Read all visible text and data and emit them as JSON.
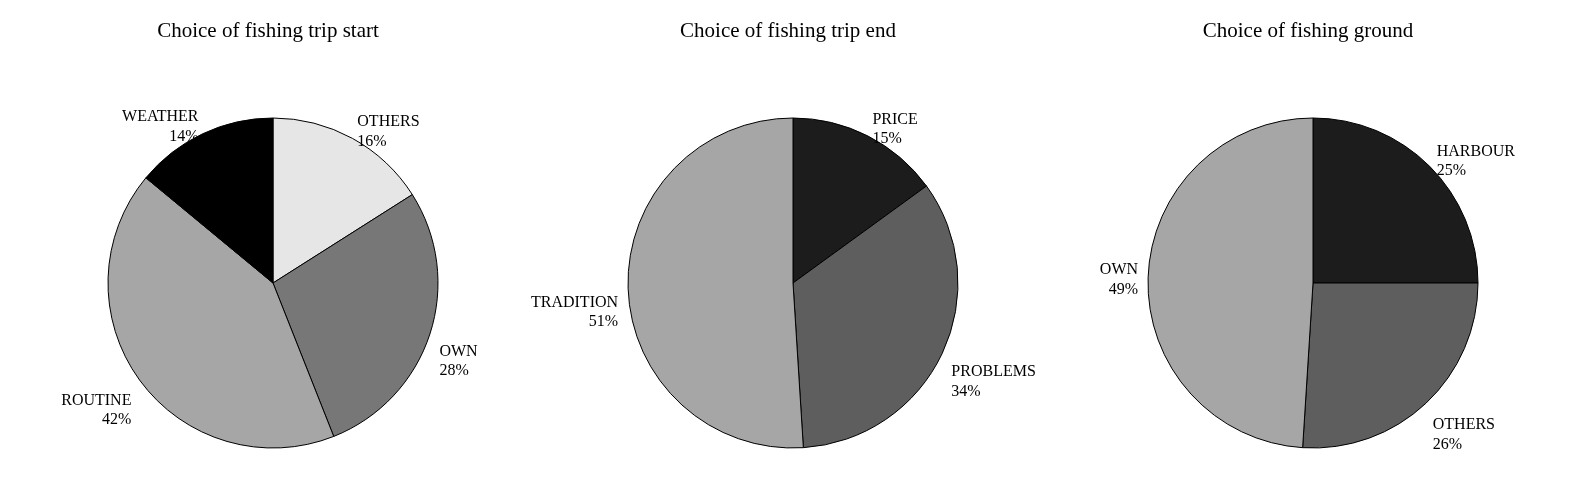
{
  "chart_data": [
    {
      "type": "pie",
      "title": "Choice of fishing trip start",
      "categories": [
        "OTHERS",
        "OWN",
        "ROUTINE",
        "WEATHER"
      ],
      "values": [
        16,
        28,
        42,
        14
      ],
      "value_labels": [
        "16%",
        "28%",
        "42%",
        "14%"
      ],
      "colors": [
        "#e6e6e6",
        "#777777",
        "#a6a6a6",
        "#000000"
      ]
    },
    {
      "type": "pie",
      "title": "Choice of fishing trip end",
      "categories": [
        "PRICE",
        "PROBLEMS",
        "TRADITION"
      ],
      "values": [
        15,
        34,
        51
      ],
      "value_labels": [
        "15%",
        "34%",
        "51%"
      ],
      "colors": [
        "#1c1c1c",
        "#5e5e5e",
        "#a6a6a6"
      ]
    },
    {
      "type": "pie",
      "title": "Choice of fishing ground",
      "categories": [
        "HARBOUR",
        "OTHERS",
        "OWN"
      ],
      "values": [
        25,
        26,
        49
      ],
      "value_labels": [
        "25%",
        "26%",
        "49%"
      ],
      "colors": [
        "#1c1c1c",
        "#5e5e5e",
        "#a6a6a6"
      ]
    }
  ]
}
